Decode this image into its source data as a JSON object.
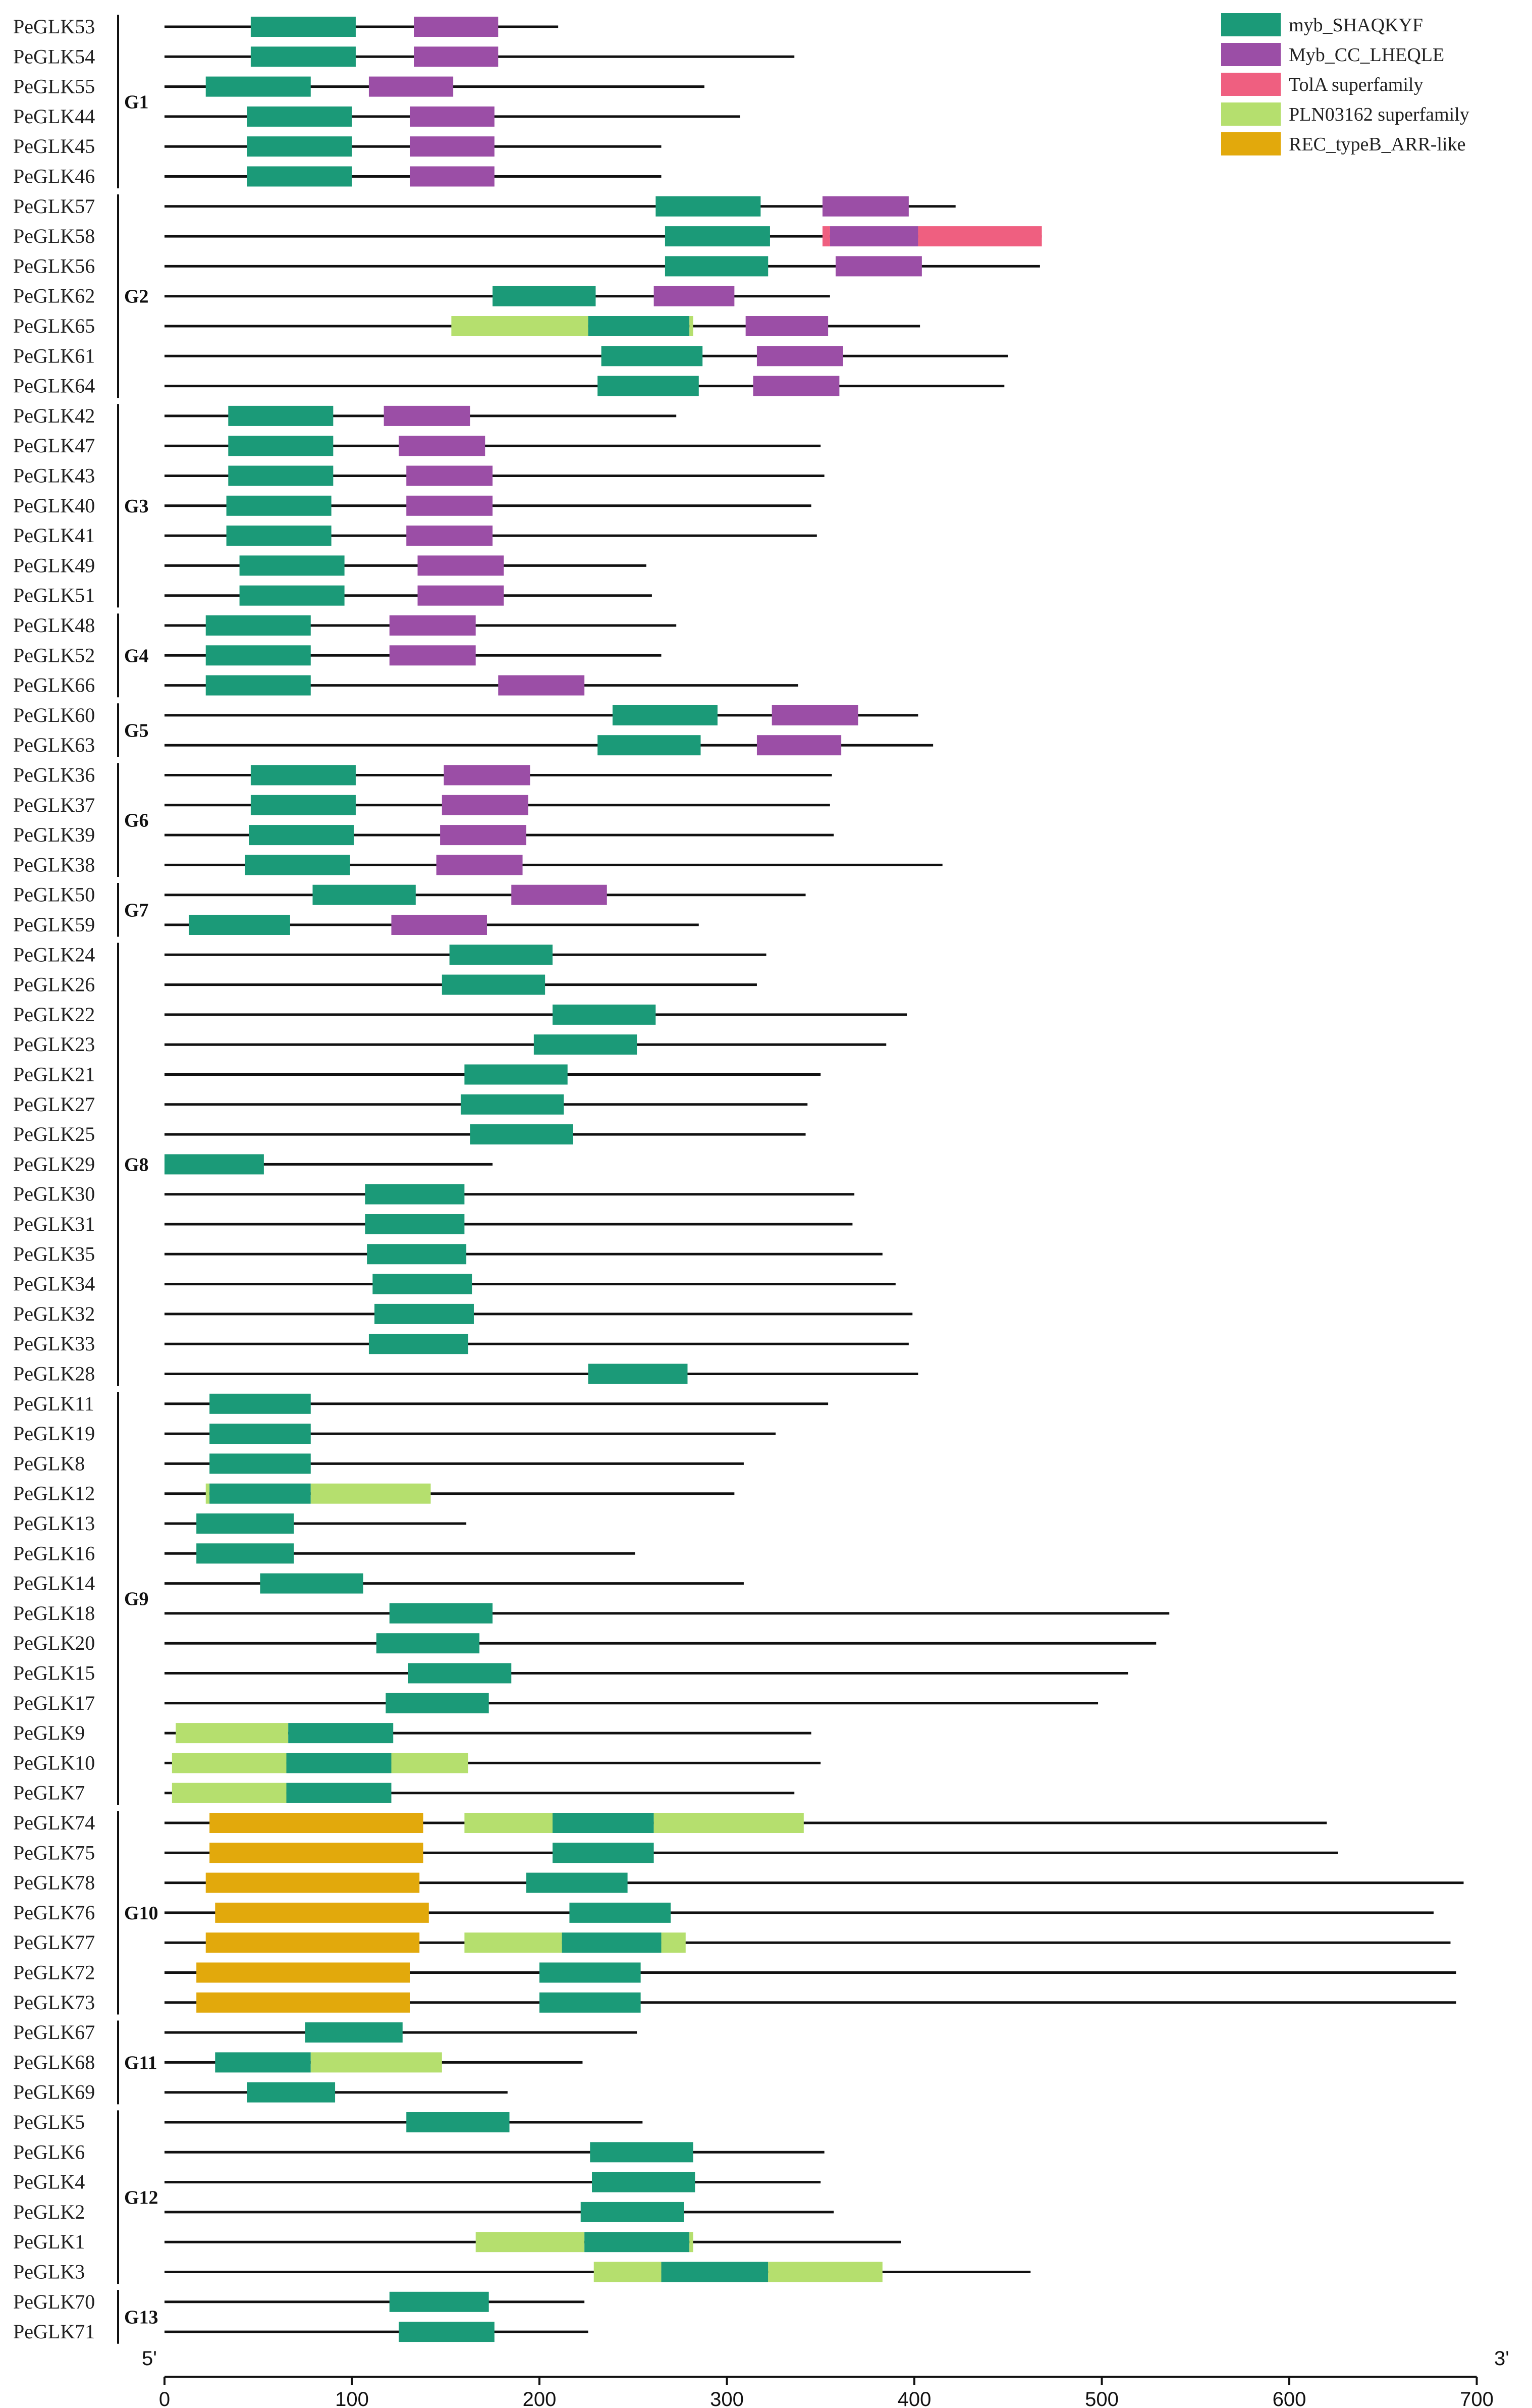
{
  "chart_data": {
    "type": "gene-domain-structure",
    "x_axis": {
      "min": 0,
      "max": 700,
      "ticks": [
        0,
        100,
        200,
        300,
        400,
        500,
        600,
        700
      ],
      "left_label": "5'",
      "right_label": "3'"
    },
    "legend": [
      {
        "key": "myb",
        "label": "myb_SHAQKYF",
        "color": "#1b9a78"
      },
      {
        "key": "cc",
        "label": "Myb_CC_LHEQLE",
        "color": "#9b4ea6"
      },
      {
        "key": "tola",
        "label": "TolA superfamily",
        "color": "#ef5f80"
      },
      {
        "key": "pln",
        "label": "PLN03162 superfamily",
        "color": "#b5df6e"
      },
      {
        "key": "rec",
        "label": "REC_typeB_ARR-like",
        "color": "#e2a90c"
      }
    ],
    "genes": [
      {
        "name": "PeGLK53",
        "length": 210,
        "domains": [
          [
            "myb",
            46,
            102
          ],
          [
            "cc",
            133,
            178
          ]
        ]
      },
      {
        "name": "PeGLK54",
        "length": 336,
        "domains": [
          [
            "myb",
            46,
            102
          ],
          [
            "cc",
            133,
            178
          ]
        ]
      },
      {
        "name": "PeGLK55",
        "length": 288,
        "domains": [
          [
            "myb",
            22,
            78
          ],
          [
            "cc",
            109,
            154
          ]
        ]
      },
      {
        "name": "PeGLK44",
        "length": 307,
        "domains": [
          [
            "myb",
            44,
            100
          ],
          [
            "cc",
            131,
            176
          ]
        ]
      },
      {
        "name": "PeGLK45",
        "length": 265,
        "domains": [
          [
            "myb",
            44,
            100
          ],
          [
            "cc",
            131,
            176
          ]
        ]
      },
      {
        "name": "PeGLK46",
        "length": 265,
        "domains": [
          [
            "myb",
            44,
            100
          ],
          [
            "cc",
            131,
            176
          ]
        ]
      },
      {
        "name": "PeGLK57",
        "length": 422,
        "domains": [
          [
            "myb",
            262,
            318
          ],
          [
            "cc",
            351,
            397
          ]
        ]
      },
      {
        "name": "PeGLK58",
        "length": 468,
        "domains": [
          [
            "myb",
            267,
            323
          ],
          [
            "tola",
            351,
            355
          ],
          [
            "cc",
            355,
            402
          ],
          [
            "tola",
            402,
            468
          ]
        ]
      },
      {
        "name": "PeGLK56",
        "length": 467,
        "domains": [
          [
            "myb",
            267,
            322
          ],
          [
            "cc",
            358,
            404
          ]
        ]
      },
      {
        "name": "PeGLK62",
        "length": 355,
        "domains": [
          [
            "myb",
            175,
            230
          ],
          [
            "cc",
            261,
            304
          ]
        ]
      },
      {
        "name": "PeGLK65",
        "length": 403,
        "domains": [
          [
            "pln",
            153,
            226
          ],
          [
            "myb",
            226,
            280
          ],
          [
            "pln",
            280,
            282
          ],
          [
            "cc",
            310,
            354
          ]
        ]
      },
      {
        "name": "PeGLK61",
        "length": 450,
        "domains": [
          [
            "myb",
            233,
            287
          ],
          [
            "cc",
            316,
            362
          ]
        ]
      },
      {
        "name": "PeGLK64",
        "length": 448,
        "domains": [
          [
            "myb",
            231,
            285
          ],
          [
            "cc",
            314,
            360
          ]
        ]
      },
      {
        "name": "PeGLK42",
        "length": 273,
        "domains": [
          [
            "myb",
            34,
            90
          ],
          [
            "cc",
            117,
            163
          ]
        ]
      },
      {
        "name": "PeGLK47",
        "length": 350,
        "domains": [
          [
            "myb",
            34,
            90
          ],
          [
            "cc",
            125,
            171
          ]
        ]
      },
      {
        "name": "PeGLK43",
        "length": 352,
        "domains": [
          [
            "myb",
            34,
            90
          ],
          [
            "cc",
            129,
            175
          ]
        ]
      },
      {
        "name": "PeGLK40",
        "length": 345,
        "domains": [
          [
            "myb",
            33,
            89
          ],
          [
            "cc",
            129,
            175
          ]
        ]
      },
      {
        "name": "PeGLK41",
        "length": 348,
        "domains": [
          [
            "myb",
            33,
            89
          ],
          [
            "cc",
            129,
            175
          ]
        ]
      },
      {
        "name": "PeGLK49",
        "length": 257,
        "domains": [
          [
            "myb",
            40,
            96
          ],
          [
            "cc",
            135,
            181
          ]
        ]
      },
      {
        "name": "PeGLK51",
        "length": 260,
        "domains": [
          [
            "myb",
            40,
            96
          ],
          [
            "cc",
            135,
            181
          ]
        ]
      },
      {
        "name": "PeGLK48",
        "length": 273,
        "domains": [
          [
            "myb",
            22,
            78
          ],
          [
            "cc",
            120,
            166
          ]
        ]
      },
      {
        "name": "PeGLK52",
        "length": 265,
        "domains": [
          [
            "myb",
            22,
            78
          ],
          [
            "cc",
            120,
            166
          ]
        ]
      },
      {
        "name": "PeGLK66",
        "length": 338,
        "domains": [
          [
            "myb",
            22,
            78
          ],
          [
            "cc",
            178,
            224
          ]
        ]
      },
      {
        "name": "PeGLK60",
        "length": 402,
        "domains": [
          [
            "myb",
            239,
            295
          ],
          [
            "cc",
            324,
            370
          ]
        ]
      },
      {
        "name": "PeGLK63",
        "length": 410,
        "domains": [
          [
            "myb",
            231,
            286
          ],
          [
            "cc",
            316,
            361
          ]
        ]
      },
      {
        "name": "PeGLK36",
        "length": 356,
        "domains": [
          [
            "myb",
            46,
            102
          ],
          [
            "cc",
            149,
            195
          ]
        ]
      },
      {
        "name": "PeGLK37",
        "length": 355,
        "domains": [
          [
            "myb",
            46,
            102
          ],
          [
            "cc",
            148,
            194
          ]
        ]
      },
      {
        "name": "PeGLK39",
        "length": 357,
        "domains": [
          [
            "myb",
            45,
            101
          ],
          [
            "cc",
            147,
            193
          ]
        ]
      },
      {
        "name": "PeGLK38",
        "length": 415,
        "domains": [
          [
            "myb",
            43,
            99
          ],
          [
            "cc",
            145,
            191
          ]
        ]
      },
      {
        "name": "PeGLK50",
        "length": 342,
        "domains": [
          [
            "myb",
            79,
            134
          ],
          [
            "cc",
            185,
            236
          ]
        ]
      },
      {
        "name": "PeGLK59",
        "length": 285,
        "domains": [
          [
            "myb",
            13,
            67
          ],
          [
            "cc",
            121,
            172
          ]
        ]
      },
      {
        "name": "PeGLK24",
        "length": 321,
        "domains": [
          [
            "myb",
            152,
            207
          ]
        ]
      },
      {
        "name": "PeGLK26",
        "length": 316,
        "domains": [
          [
            "myb",
            148,
            203
          ]
        ]
      },
      {
        "name": "PeGLK22",
        "length": 396,
        "domains": [
          [
            "myb",
            207,
            262
          ]
        ]
      },
      {
        "name": "PeGLK23",
        "length": 385,
        "domains": [
          [
            "myb",
            197,
            252
          ]
        ]
      },
      {
        "name": "PeGLK21",
        "length": 350,
        "domains": [
          [
            "myb",
            160,
            215
          ]
        ]
      },
      {
        "name": "PeGLK27",
        "length": 343,
        "domains": [
          [
            "myb",
            158,
            213
          ]
        ]
      },
      {
        "name": "PeGLK25",
        "length": 342,
        "domains": [
          [
            "myb",
            163,
            218
          ]
        ]
      },
      {
        "name": "PeGLK29",
        "length": 175,
        "domains": [
          [
            "myb",
            0,
            53
          ]
        ]
      },
      {
        "name": "PeGLK30",
        "length": 368,
        "domains": [
          [
            "myb",
            107,
            160
          ]
        ]
      },
      {
        "name": "PeGLK31",
        "length": 367,
        "domains": [
          [
            "myb",
            107,
            160
          ]
        ]
      },
      {
        "name": "PeGLK35",
        "length": 383,
        "domains": [
          [
            "myb",
            108,
            161
          ]
        ]
      },
      {
        "name": "PeGLK34",
        "length": 390,
        "domains": [
          [
            "myb",
            111,
            164
          ]
        ]
      },
      {
        "name": "PeGLK32",
        "length": 399,
        "domains": [
          [
            "myb",
            112,
            165
          ]
        ]
      },
      {
        "name": "PeGLK33",
        "length": 397,
        "domains": [
          [
            "myb",
            109,
            162
          ]
        ]
      },
      {
        "name": "PeGLK28",
        "length": 402,
        "domains": [
          [
            "myb",
            226,
            279
          ]
        ]
      },
      {
        "name": "PeGLK11",
        "length": 354,
        "domains": [
          [
            "myb",
            24,
            78
          ]
        ]
      },
      {
        "name": "PeGLK19",
        "length": 326,
        "domains": [
          [
            "myb",
            24,
            78
          ]
        ]
      },
      {
        "name": "PeGLK8",
        "length": 309,
        "domains": [
          [
            "myb",
            24,
            78
          ]
        ]
      },
      {
        "name": "PeGLK12",
        "length": 304,
        "domains": [
          [
            "pln",
            22,
            24
          ],
          [
            "myb",
            24,
            78
          ],
          [
            "pln",
            78,
            142
          ]
        ]
      },
      {
        "name": "PeGLK13",
        "length": 161,
        "domains": [
          [
            "myb",
            17,
            69
          ]
        ]
      },
      {
        "name": "PeGLK16",
        "length": 251,
        "domains": [
          [
            "myb",
            17,
            69
          ]
        ]
      },
      {
        "name": "PeGLK14",
        "length": 309,
        "domains": [
          [
            "myb",
            51,
            106
          ]
        ]
      },
      {
        "name": "PeGLK18",
        "length": 536,
        "domains": [
          [
            "myb",
            120,
            175
          ]
        ]
      },
      {
        "name": "PeGLK20",
        "length": 529,
        "domains": [
          [
            "myb",
            113,
            168
          ]
        ]
      },
      {
        "name": "PeGLK15",
        "length": 514,
        "domains": [
          [
            "myb",
            130,
            185
          ]
        ]
      },
      {
        "name": "PeGLK17",
        "length": 498,
        "domains": [
          [
            "myb",
            118,
            173
          ]
        ]
      },
      {
        "name": "PeGLK9",
        "length": 345,
        "domains": [
          [
            "pln",
            6,
            66
          ],
          [
            "myb",
            66,
            122
          ]
        ]
      },
      {
        "name": "PeGLK10",
        "length": 350,
        "domains": [
          [
            "pln",
            4,
            65
          ],
          [
            "myb",
            65,
            121
          ],
          [
            "pln",
            121,
            162
          ]
        ]
      },
      {
        "name": "PeGLK7",
        "length": 336,
        "domains": [
          [
            "pln",
            4,
            65
          ],
          [
            "myb",
            65,
            121
          ]
        ]
      },
      {
        "name": "PeGLK74",
        "length": 620,
        "domains": [
          [
            "rec",
            24,
            138
          ],
          [
            "pln",
            160,
            207
          ],
          [
            "myb",
            207,
            261
          ],
          [
            "pln",
            261,
            341
          ]
        ]
      },
      {
        "name": "PeGLK75",
        "length": 626,
        "domains": [
          [
            "rec",
            24,
            138
          ],
          [
            "myb",
            207,
            261
          ]
        ]
      },
      {
        "name": "PeGLK78",
        "length": 693,
        "domains": [
          [
            "rec",
            22,
            136
          ],
          [
            "myb",
            193,
            247
          ]
        ]
      },
      {
        "name": "PeGLK76",
        "length": 677,
        "domains": [
          [
            "rec",
            27,
            141
          ],
          [
            "myb",
            216,
            270
          ]
        ]
      },
      {
        "name": "PeGLK77",
        "length": 686,
        "domains": [
          [
            "rec",
            22,
            136
          ],
          [
            "pln",
            160,
            212
          ],
          [
            "myb",
            212,
            265
          ],
          [
            "pln",
            265,
            278
          ]
        ]
      },
      {
        "name": "PeGLK72",
        "length": 689,
        "domains": [
          [
            "rec",
            17,
            131
          ],
          [
            "myb",
            200,
            254
          ]
        ]
      },
      {
        "name": "PeGLK73",
        "length": 689,
        "domains": [
          [
            "rec",
            17,
            131
          ],
          [
            "myb",
            200,
            254
          ]
        ]
      },
      {
        "name": "PeGLK67",
        "length": 252,
        "domains": [
          [
            "myb",
            75,
            127
          ]
        ]
      },
      {
        "name": "PeGLK68",
        "length": 223,
        "domains": [
          [
            "myb",
            27,
            78
          ],
          [
            "pln",
            78,
            148
          ]
        ]
      },
      {
        "name": "PeGLK69",
        "length": 183,
        "domains": [
          [
            "myb",
            44,
            91
          ]
        ]
      },
      {
        "name": "PeGLK5",
        "length": 255,
        "domains": [
          [
            "myb",
            129,
            184
          ]
        ]
      },
      {
        "name": "PeGLK6",
        "length": 352,
        "domains": [
          [
            "myb",
            227,
            282
          ]
        ]
      },
      {
        "name": "PeGLK4",
        "length": 350,
        "domains": [
          [
            "myb",
            228,
            283
          ]
        ]
      },
      {
        "name": "PeGLK2",
        "length": 357,
        "domains": [
          [
            "myb",
            222,
            277
          ]
        ]
      },
      {
        "name": "PeGLK1",
        "length": 393,
        "domains": [
          [
            "pln",
            166,
            224
          ],
          [
            "myb",
            224,
            280
          ],
          [
            "pln",
            280,
            282
          ]
        ]
      },
      {
        "name": "PeGLK3",
        "length": 462,
        "domains": [
          [
            "pln",
            229,
            265
          ],
          [
            "myb",
            265,
            322
          ],
          [
            "pln",
            322,
            383
          ]
        ]
      },
      {
        "name": "PeGLK70",
        "length": 224,
        "domains": [
          [
            "myb",
            120,
            173
          ]
        ]
      },
      {
        "name": "PeGLK71",
        "length": 226,
        "domains": [
          [
            "myb",
            125,
            176
          ]
        ]
      }
    ],
    "groups": [
      {
        "label": "G1",
        "start": "PeGLK53",
        "end": "PeGLK46"
      },
      {
        "label": "G2",
        "start": "PeGLK57",
        "end": "PeGLK64"
      },
      {
        "label": "G3",
        "start": "PeGLK42",
        "end": "PeGLK51"
      },
      {
        "label": "G4",
        "start": "PeGLK48",
        "end": "PeGLK66"
      },
      {
        "label": "G5",
        "start": "PeGLK60",
        "end": "PeGLK63"
      },
      {
        "label": "G6",
        "start": "PeGLK36",
        "end": "PeGLK38"
      },
      {
        "label": "G7",
        "start": "PeGLK50",
        "end": "PeGLK59"
      },
      {
        "label": "G8",
        "start": "PeGLK24",
        "end": "PeGLK28"
      },
      {
        "label": "G9",
        "start": "PeGLK11",
        "end": "PeGLK7"
      },
      {
        "label": "G10",
        "start": "PeGLK74",
        "end": "PeGLK73"
      },
      {
        "label": "G11",
        "start": "PeGLK67",
        "end": "PeGLK69"
      },
      {
        "label": "G12",
        "start": "PeGLK5",
        "end": "PeGLK3"
      },
      {
        "label": "G13",
        "start": "PeGLK70",
        "end": "PeGLK71"
      }
    ]
  }
}
